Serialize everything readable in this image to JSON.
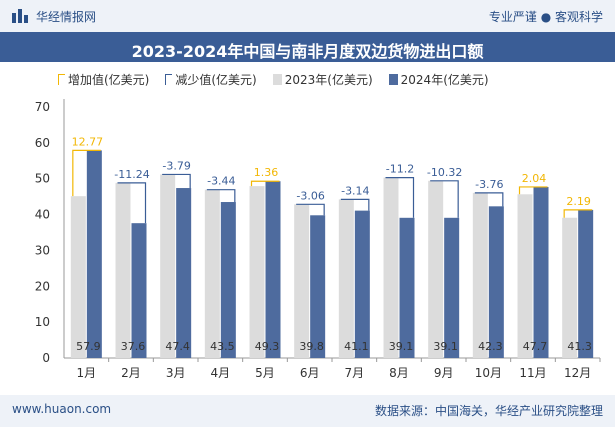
{
  "header": {
    "brand": "华经情报网",
    "slogan": "专业严谨 ● 客观科学"
  },
  "footer": {
    "site": "www.huaon.com",
    "source": "数据来源：中国海关，华经产业研究院整理"
  },
  "colors": {
    "bar2023": "#dcdcdc",
    "bar2024": "#4e6b9e",
    "increase": "#f2b705",
    "decrease": "#3a5d96",
    "titlebar": "#3a5d96"
  },
  "chart_data": {
    "type": "bar",
    "title": "2023-2024年中国与南非月度双边货物进出口额",
    "legend": [
      "增加值(亿美元)",
      "减少值(亿美元)",
      "2023年(亿美元)",
      "2024年(亿美元)"
    ],
    "legend_position": "top-left",
    "categories": [
      "1月",
      "2月",
      "3月",
      "4月",
      "5月",
      "6月",
      "7月",
      "8月",
      "9月",
      "10月",
      "11月",
      "12月"
    ],
    "series": [
      {
        "name": "2023年(亿美元)",
        "values": [
          45.13,
          48.84,
          51.19,
          46.94,
          47.94,
          42.86,
          44.24,
          50.3,
          49.42,
          46.06,
          45.66,
          39.11
        ]
      },
      {
        "name": "2024年(亿美元)",
        "values": [
          57.9,
          37.6,
          47.4,
          43.5,
          49.3,
          39.8,
          41.1,
          39.1,
          39.1,
          42.3,
          47.7,
          41.3
        ]
      }
    ],
    "change_labels": [
      "12.77",
      "-11.24",
      "-3.79",
      "-3.44",
      "1.36",
      "-3.06",
      "-3.14",
      "-11.2",
      "-10.32",
      "-3.76",
      "2.04",
      "2.19"
    ],
    "value_labels": [
      "57.9",
      "37.6",
      "47.4",
      "43.5",
      "49.3",
      "39.8",
      "41.1",
      "39.1",
      "39.1",
      "42.3",
      "47.7",
      "41.3"
    ],
    "yticks": [
      "0",
      "10",
      "20",
      "30",
      "40",
      "50",
      "60",
      "70"
    ],
    "ylim": [
      0,
      70
    ],
    "grid": false
  }
}
